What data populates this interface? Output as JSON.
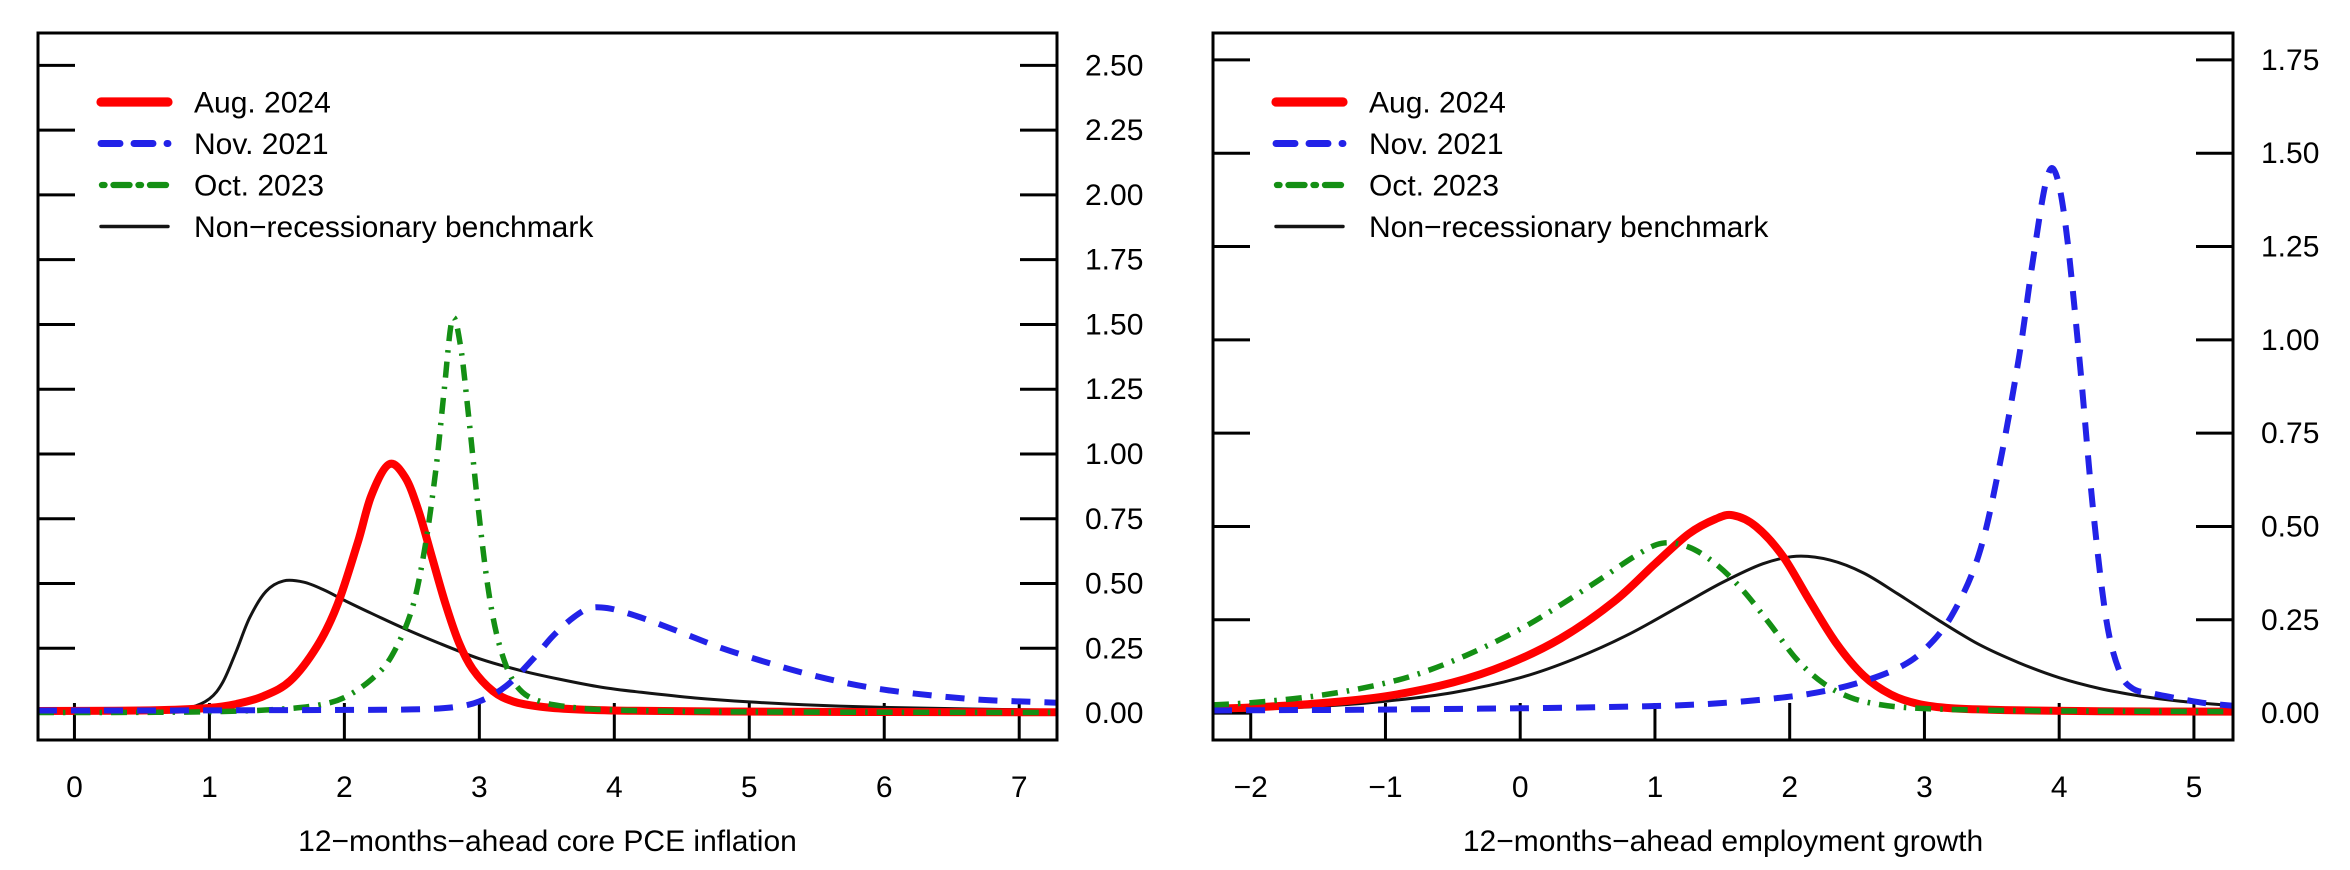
{
  "figure": {
    "background": "#ffffff"
  },
  "legend": {
    "position": "top-left",
    "entries": [
      "Aug. 2024",
      "Nov. 2021",
      "Oct. 2023",
      "Non−recessionary benchmark"
    ]
  },
  "chart_data": [
    {
      "type": "line",
      "panel_id": "core-pce-inflation",
      "title": "",
      "xlabel": "12−months−ahead core PCE inflation",
      "ylabel": "",
      "xlim": [
        -0.27,
        7.28
      ],
      "ylim": [
        -0.104,
        2.625
      ],
      "grid": false,
      "y_axis_side": "right",
      "x_ticks": {
        "values": [
          0,
          1,
          2,
          3,
          4,
          5,
          6,
          7
        ],
        "labels": [
          "0",
          "1",
          "2",
          "3",
          "4",
          "5",
          "6",
          "7"
        ]
      },
      "y_ticks": {
        "values": [
          0,
          0.25,
          0.5,
          0.75,
          1,
          1.25,
          1.5,
          1.75,
          2,
          2.25,
          2.5
        ],
        "labels": [
          "0.00",
          "0.25",
          "0.50",
          "0.75",
          "1.00",
          "1.25",
          "1.50",
          "1.75",
          "2.00",
          "2.25",
          "2.50"
        ]
      },
      "series": [
        {
          "name": "Aug. 2024",
          "color": "#ff0000",
          "style": "solid",
          "width": 8,
          "points": [
            [
              -0.27,
              0.008
            ],
            [
              0.3,
              0.009
            ],
            [
              0.7,
              0.012
            ],
            [
              1.0,
              0.02
            ],
            [
              1.2,
              0.035
            ],
            [
              1.4,
              0.065
            ],
            [
              1.6,
              0.125
            ],
            [
              1.8,
              0.26
            ],
            [
              1.95,
              0.42
            ],
            [
              2.1,
              0.66
            ],
            [
              2.2,
              0.84
            ],
            [
              2.33,
              0.96
            ],
            [
              2.45,
              0.91
            ],
            [
              2.55,
              0.78
            ],
            [
              2.65,
              0.6
            ],
            [
              2.75,
              0.42
            ],
            [
              2.85,
              0.27
            ],
            [
              2.95,
              0.17
            ],
            [
              3.1,
              0.085
            ],
            [
              3.25,
              0.045
            ],
            [
              3.45,
              0.025
            ],
            [
              3.7,
              0.015
            ],
            [
              4.1,
              0.009
            ],
            [
              4.8,
              0.006
            ],
            [
              5.8,
              0.004
            ],
            [
              7.28,
              0.003
            ]
          ]
        },
        {
          "name": "Nov. 2021",
          "color": "#2222e8",
          "style": "dashed",
          "width": 6,
          "points": [
            [
              -0.27,
              0.01
            ],
            [
              0.6,
              0.01
            ],
            [
              1.4,
              0.011
            ],
            [
              2.0,
              0.012
            ],
            [
              2.5,
              0.014
            ],
            [
              2.8,
              0.022
            ],
            [
              3.0,
              0.045
            ],
            [
              3.2,
              0.105
            ],
            [
              3.4,
              0.21
            ],
            [
              3.55,
              0.3
            ],
            [
              3.7,
              0.37
            ],
            [
              3.82,
              0.405
            ],
            [
              3.95,
              0.405
            ],
            [
              4.1,
              0.385
            ],
            [
              4.3,
              0.35
            ],
            [
              4.55,
              0.3
            ],
            [
              4.8,
              0.25
            ],
            [
              5.1,
              0.2
            ],
            [
              5.4,
              0.155
            ],
            [
              5.7,
              0.118
            ],
            [
              6.0,
              0.09
            ],
            [
              6.35,
              0.068
            ],
            [
              6.7,
              0.052
            ],
            [
              7.0,
              0.045
            ],
            [
              7.28,
              0.04
            ]
          ]
        },
        {
          "name": "Oct. 2023",
          "color": "#148f14",
          "style": "dashdot",
          "width": 5.5,
          "points": [
            [
              -0.27,
              0.002
            ],
            [
              0.6,
              0.003
            ],
            [
              1.1,
              0.006
            ],
            [
              1.5,
              0.014
            ],
            [
              1.8,
              0.03
            ],
            [
              2.0,
              0.06
            ],
            [
              2.2,
              0.13
            ],
            [
              2.35,
              0.22
            ],
            [
              2.5,
              0.4
            ],
            [
              2.6,
              0.65
            ],
            [
              2.68,
              0.95
            ],
            [
              2.74,
              1.25
            ],
            [
              2.8,
              1.52
            ],
            [
              2.86,
              1.42
            ],
            [
              2.92,
              1.15
            ],
            [
              2.99,
              0.8
            ],
            [
              3.06,
              0.5
            ],
            [
              3.13,
              0.3
            ],
            [
              3.22,
              0.155
            ],
            [
              3.32,
              0.08
            ],
            [
              3.45,
              0.045
            ],
            [
              3.6,
              0.028
            ],
            [
              3.85,
              0.015
            ],
            [
              4.3,
              0.008
            ],
            [
              5.2,
              0.004
            ],
            [
              7.28,
              0.002
            ]
          ]
        },
        {
          "name": "Non−recessionary benchmark",
          "color": "#141414",
          "style": "solid",
          "width": 3,
          "points": [
            [
              -0.27,
              0.002
            ],
            [
              0.35,
              0.004
            ],
            [
              0.65,
              0.009
            ],
            [
              0.85,
              0.02
            ],
            [
              1.0,
              0.055
            ],
            [
              1.1,
              0.12
            ],
            [
              1.2,
              0.24
            ],
            [
              1.3,
              0.37
            ],
            [
              1.42,
              0.47
            ],
            [
              1.55,
              0.51
            ],
            [
              1.7,
              0.505
            ],
            [
              1.85,
              0.475
            ],
            [
              2.0,
              0.435
            ],
            [
              2.2,
              0.385
            ],
            [
              2.45,
              0.325
            ],
            [
              2.7,
              0.27
            ],
            [
              3.0,
              0.21
            ],
            [
              3.3,
              0.165
            ],
            [
              3.6,
              0.13
            ],
            [
              3.9,
              0.1
            ],
            [
              4.2,
              0.08
            ],
            [
              4.6,
              0.058
            ],
            [
              5.0,
              0.043
            ],
            [
              5.5,
              0.03
            ],
            [
              6.0,
              0.022
            ],
            [
              6.6,
              0.016
            ],
            [
              7.28,
              0.011
            ]
          ]
        }
      ]
    },
    {
      "type": "line",
      "panel_id": "employment-growth",
      "title": "",
      "xlabel": "12−months−ahead employment growth",
      "ylabel": "",
      "xlim": [
        -2.28,
        5.29
      ],
      "ylim": [
        -0.072,
        1.822
      ],
      "grid": false,
      "y_axis_side": "right",
      "x_ticks": {
        "values": [
          -2,
          -1,
          0,
          1,
          2,
          3,
          4,
          5
        ],
        "labels": [
          "−2",
          "−1",
          "0",
          "1",
          "2",
          "3",
          "4",
          "5"
        ]
      },
      "y_ticks": {
        "values": [
          0,
          0.25,
          0.5,
          0.75,
          1,
          1.25,
          1.5,
          1.75
        ],
        "labels": [
          "0.00",
          "0.25",
          "0.50",
          "0.75",
          "1.00",
          "1.25",
          "1.50",
          "1.75"
        ]
      },
      "series": [
        {
          "name": "Aug. 2024",
          "color": "#ff0000",
          "style": "solid",
          "width": 8,
          "points": [
            [
              -2.28,
              0.012
            ],
            [
              -2.0,
              0.015
            ],
            [
              -1.5,
              0.026
            ],
            [
              -1.0,
              0.045
            ],
            [
              -0.5,
              0.082
            ],
            [
              -0.1,
              0.13
            ],
            [
              0.3,
              0.2
            ],
            [
              0.7,
              0.3
            ],
            [
              1.0,
              0.4
            ],
            [
              1.25,
              0.48
            ],
            [
              1.45,
              0.52
            ],
            [
              1.58,
              0.53
            ],
            [
              1.75,
              0.5
            ],
            [
              1.95,
              0.42
            ],
            [
              2.15,
              0.3
            ],
            [
              2.35,
              0.185
            ],
            [
              2.55,
              0.1
            ],
            [
              2.75,
              0.05
            ],
            [
              2.95,
              0.025
            ],
            [
              3.2,
              0.013
            ],
            [
              3.6,
              0.008
            ],
            [
              4.3,
              0.005
            ],
            [
              5.29,
              0.004
            ]
          ]
        },
        {
          "name": "Nov. 2021",
          "color": "#2222e8",
          "style": "dashed",
          "width": 6,
          "points": [
            [
              -2.28,
              0.007
            ],
            [
              -1.8,
              0.008
            ],
            [
              -1.2,
              0.009
            ],
            [
              -0.6,
              0.011
            ],
            [
              0.0,
              0.013
            ],
            [
              0.6,
              0.016
            ],
            [
              1.1,
              0.02
            ],
            [
              1.5,
              0.027
            ],
            [
              1.9,
              0.04
            ],
            [
              2.2,
              0.055
            ],
            [
              2.5,
              0.08
            ],
            [
              2.8,
              0.12
            ],
            [
              3.0,
              0.17
            ],
            [
              3.2,
              0.26
            ],
            [
              3.4,
              0.42
            ],
            [
              3.55,
              0.65
            ],
            [
              3.7,
              0.95
            ],
            [
              3.8,
              1.2
            ],
            [
              3.9,
              1.42
            ],
            [
              3.97,
              1.45
            ],
            [
              4.05,
              1.3
            ],
            [
              4.15,
              0.95
            ],
            [
              4.25,
              0.55
            ],
            [
              4.35,
              0.25
            ],
            [
              4.45,
              0.11
            ],
            [
              4.55,
              0.065
            ],
            [
              4.7,
              0.052
            ],
            [
              4.9,
              0.038
            ],
            [
              5.1,
              0.026
            ],
            [
              5.29,
              0.02
            ]
          ]
        },
        {
          "name": "Oct. 2023",
          "color": "#148f14",
          "style": "dashdot",
          "width": 5.5,
          "points": [
            [
              -2.28,
              0.022
            ],
            [
              -2.0,
              0.028
            ],
            [
              -1.6,
              0.042
            ],
            [
              -1.2,
              0.065
            ],
            [
              -0.8,
              0.1
            ],
            [
              -0.4,
              0.155
            ],
            [
              0.0,
              0.225
            ],
            [
              0.3,
              0.29
            ],
            [
              0.6,
              0.36
            ],
            [
              0.85,
              0.42
            ],
            [
              1.05,
              0.455
            ],
            [
              1.25,
              0.445
            ],
            [
              1.45,
              0.4
            ],
            [
              1.65,
              0.33
            ],
            [
              1.85,
              0.24
            ],
            [
              2.05,
              0.145
            ],
            [
              2.25,
              0.08
            ],
            [
              2.45,
              0.042
            ],
            [
              2.65,
              0.024
            ],
            [
              2.9,
              0.014
            ],
            [
              3.3,
              0.009
            ],
            [
              3.9,
              0.006
            ],
            [
              4.6,
              0.005
            ],
            [
              5.29,
              0.004
            ]
          ]
        },
        {
          "name": "Non−recessionary benchmark",
          "color": "#141414",
          "style": "solid",
          "width": 3,
          "points": [
            [
              -2.28,
              0.008
            ],
            [
              -2.0,
              0.01
            ],
            [
              -1.5,
              0.018
            ],
            [
              -1.0,
              0.032
            ],
            [
              -0.5,
              0.055
            ],
            [
              0.0,
              0.095
            ],
            [
              0.4,
              0.145
            ],
            [
              0.8,
              0.21
            ],
            [
              1.2,
              0.29
            ],
            [
              1.5,
              0.35
            ],
            [
              1.8,
              0.4
            ],
            [
              2.05,
              0.42
            ],
            [
              2.3,
              0.41
            ],
            [
              2.55,
              0.375
            ],
            [
              2.8,
              0.32
            ],
            [
              3.1,
              0.25
            ],
            [
              3.4,
              0.185
            ],
            [
              3.7,
              0.135
            ],
            [
              4.0,
              0.095
            ],
            [
              4.3,
              0.066
            ],
            [
              4.6,
              0.046
            ],
            [
              4.9,
              0.032
            ],
            [
              5.29,
              0.02
            ]
          ]
        }
      ]
    }
  ]
}
